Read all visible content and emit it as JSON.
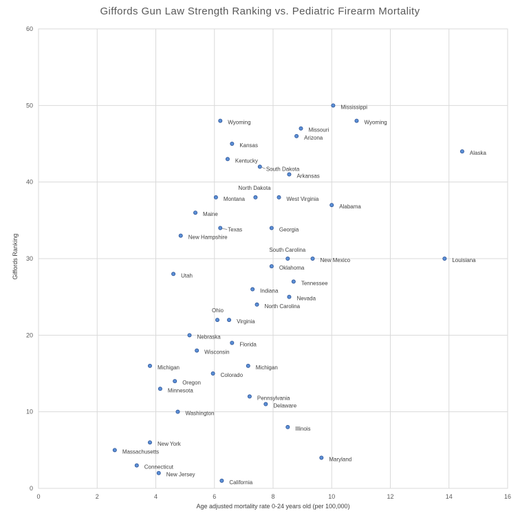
{
  "chart_data": {
    "type": "scatter",
    "title": "Giffords Gun Law Strength Ranking vs. Pediatric Firearm Mortality",
    "xlabel": "Age adjusted mortality rate 0-24 years old (per 100,000)",
    "ylabel": "Giffords Ranking",
    "xlim": [
      0,
      16
    ],
    "ylim": [
      0,
      60
    ],
    "xticks": [
      "0",
      "2",
      "4",
      "6",
      "8",
      "10",
      "12",
      "14",
      "16"
    ],
    "yticks": [
      "0",
      "10",
      "20",
      "30",
      "40",
      "50",
      "60"
    ],
    "grid": true,
    "marker_color": "#5b8fd6",
    "points": [
      {
        "label": "Mississippi",
        "x": 10.05,
        "y": 50
      },
      {
        "label": "Wyoming",
        "x": 6.2,
        "y": 48
      },
      {
        "label": "Wyoming",
        "x": 10.85,
        "y": 48
      },
      {
        "label": "Missouri",
        "x": 8.95,
        "y": 47
      },
      {
        "label": "Arizona",
        "x": 8.8,
        "y": 46
      },
      {
        "label": "Kansas",
        "x": 6.6,
        "y": 45
      },
      {
        "label": "Alaska",
        "x": 14.45,
        "y": 44
      },
      {
        "label": "Kentucky",
        "x": 6.45,
        "y": 43
      },
      {
        "label": "South Dakota",
        "x": 7.55,
        "y": 42
      },
      {
        "label": "Arkansas",
        "x": 8.55,
        "y": 41
      },
      {
        "label": "North Dakota",
        "x": 7.4,
        "y": 38
      },
      {
        "label": "Montana",
        "x": 6.05,
        "y": 38
      },
      {
        "label": "West Virginia",
        "x": 8.2,
        "y": 38
      },
      {
        "label": "Alabama",
        "x": 10.0,
        "y": 37
      },
      {
        "label": "Maine",
        "x": 5.35,
        "y": 36
      },
      {
        "label": "Texas",
        "x": 6.2,
        "y": 34
      },
      {
        "label": "Georgia",
        "x": 7.95,
        "y": 34
      },
      {
        "label": "New Hampshire",
        "x": 4.85,
        "y": 33
      },
      {
        "label": "South Carolina",
        "x": 8.5,
        "y": 30
      },
      {
        "label": "New Mexico",
        "x": 9.35,
        "y": 30
      },
      {
        "label": "Louisiana",
        "x": 13.85,
        "y": 30
      },
      {
        "label": "Oklahoma",
        "x": 7.95,
        "y": 29
      },
      {
        "label": "Utah",
        "x": 4.6,
        "y": 28
      },
      {
        "label": "Tennessee",
        "x": 8.7,
        "y": 27
      },
      {
        "label": "Indiana",
        "x": 7.3,
        "y": 26
      },
      {
        "label": "Nevada",
        "x": 8.55,
        "y": 25
      },
      {
        "label": "North Carolina",
        "x": 7.45,
        "y": 24
      },
      {
        "label": "Ohio",
        "x": 6.1,
        "y": 22
      },
      {
        "label": "Virginia",
        "x": 6.5,
        "y": 22
      },
      {
        "label": "Nebraska",
        "x": 5.15,
        "y": 20
      },
      {
        "label": "Florida",
        "x": 6.6,
        "y": 19
      },
      {
        "label": "Wisconsin",
        "x": 5.4,
        "y": 18
      },
      {
        "label": "Michigan",
        "x": 3.8,
        "y": 16
      },
      {
        "label": "Michigan",
        "x": 7.15,
        "y": 16
      },
      {
        "label": "Colorado",
        "x": 5.95,
        "y": 15
      },
      {
        "label": "Oregon",
        "x": 4.65,
        "y": 14
      },
      {
        "label": "Minnesota",
        "x": 4.15,
        "y": 13
      },
      {
        "label": "Pennsylvania",
        "x": 7.2,
        "y": 12
      },
      {
        "label": "Delaware",
        "x": 7.75,
        "y": 11
      },
      {
        "label": "Washington",
        "x": 4.75,
        "y": 10
      },
      {
        "label": "Illinois",
        "x": 8.5,
        "y": 8
      },
      {
        "label": "New York",
        "x": 3.8,
        "y": 6
      },
      {
        "label": "Massachusetts",
        "x": 2.6,
        "y": 5
      },
      {
        "label": "Maryland",
        "x": 9.65,
        "y": 4
      },
      {
        "label": "Connecticut",
        "x": 3.35,
        "y": 3
      },
      {
        "label": "New Jersey",
        "x": 4.1,
        "y": 2
      },
      {
        "label": "California",
        "x": 6.25,
        "y": 1
      }
    ]
  }
}
